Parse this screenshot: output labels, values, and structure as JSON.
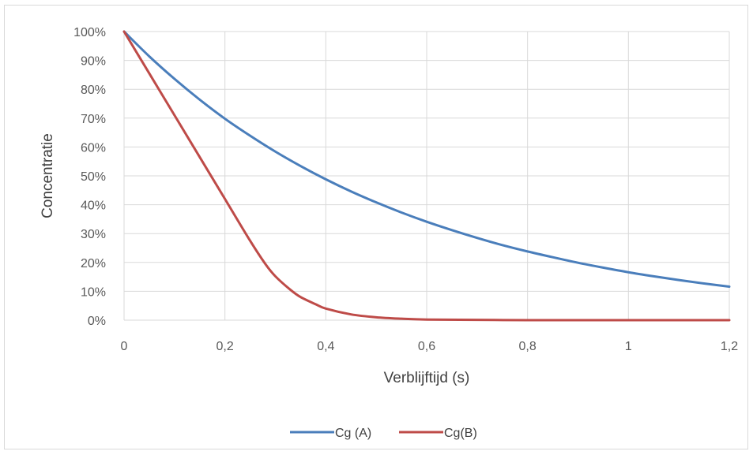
{
  "chart_data": {
    "type": "line",
    "title": "",
    "xlabel": "Verblijftijd (s)",
    "ylabel": "Concentratie",
    "xlim": [
      0,
      1.2
    ],
    "ylim": [
      0,
      1
    ],
    "x_ticks": [
      "0",
      "0,2",
      "0,4",
      "0,6",
      "0,8",
      "1",
      "1,2"
    ],
    "x_tick_values": [
      0,
      0.2,
      0.4,
      0.6,
      0.8,
      1.0,
      1.2
    ],
    "y_ticks": [
      "0%",
      "10%",
      "20%",
      "30%",
      "40%",
      "50%",
      "60%",
      "70%",
      "80%",
      "90%",
      "100%"
    ],
    "y_tick_values": [
      0,
      0.1,
      0.2,
      0.3,
      0.4,
      0.5,
      0.6,
      0.7,
      0.8,
      0.9,
      1.0
    ],
    "grid": true,
    "legend_position": "bottom",
    "series": [
      {
        "name": "Cg (A)",
        "color": "#4a7ebb",
        "x": [
          0,
          0.05,
          0.1,
          0.15,
          0.2,
          0.25,
          0.3,
          0.35,
          0.4,
          0.45,
          0.5,
          0.55,
          0.6,
          0.65,
          0.7,
          0.75,
          0.8,
          0.85,
          0.9,
          0.95,
          1.0,
          1.05,
          1.1,
          1.15,
          1.2
        ],
        "y": [
          1.0,
          0.914,
          0.836,
          0.764,
          0.698,
          0.639,
          0.584,
          0.534,
          0.488,
          0.446,
          0.408,
          0.373,
          0.341,
          0.312,
          0.285,
          0.26,
          0.238,
          0.218,
          0.199,
          0.182,
          0.166,
          0.152,
          0.139,
          0.127,
          0.116
        ]
      },
      {
        "name": "Cg(B)",
        "color": "#be4b48",
        "x": [
          0,
          0.05,
          0.1,
          0.15,
          0.2,
          0.25,
          0.28,
          0.3,
          0.33,
          0.35,
          0.38,
          0.4,
          0.45,
          0.5,
          0.55,
          0.6,
          0.7,
          0.8,
          0.9,
          1.0,
          1.1,
          1.2
        ],
        "y": [
          1.0,
          0.855,
          0.71,
          0.565,
          0.42,
          0.275,
          0.195,
          0.152,
          0.105,
          0.08,
          0.055,
          0.04,
          0.02,
          0.01,
          0.005,
          0.002,
          0.001,
          0.0,
          0.0,
          0.0,
          0.0,
          0.0
        ]
      }
    ]
  }
}
